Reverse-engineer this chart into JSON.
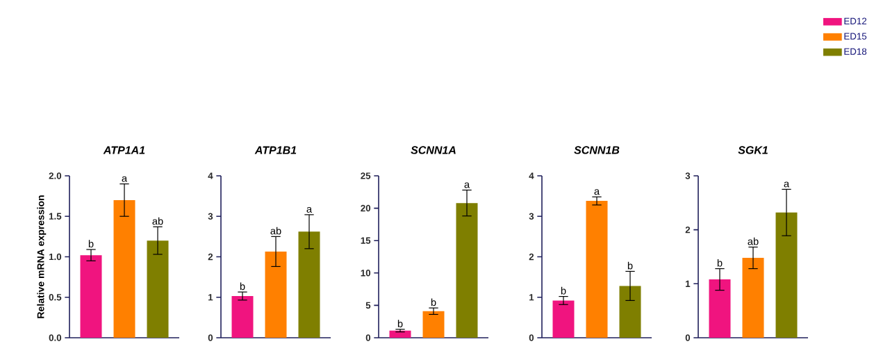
{
  "chart_data": [
    {
      "type": "bar",
      "title": "ATP1A1",
      "ylabel": "Relative mRNA expression",
      "categories": [
        null
      ],
      "ylim": [
        0,
        2
      ],
      "yticks": [
        {
          "value": 0,
          "label": "0.0"
        },
        {
          "value": 0.5,
          "label": "0.5"
        },
        {
          "value": 1,
          "label": "1.0"
        },
        {
          "value": 1.5,
          "label": "1.5"
        },
        {
          "value": 2,
          "label": "2.0"
        }
      ],
      "series": [
        {
          "color": "#f0147f",
          "values": [
            1.02
          ],
          "errors": [
            0.07
          ]
        },
        {
          "color": "#ff8000",
          "values": [
            1.7
          ],
          "errors": [
            0.2
          ]
        },
        {
          "color": "#7f7f00",
          "values": [
            1.2
          ],
          "errors": [
            0.17
          ]
        }
      ],
      "annotations": [
        {
          "text": "b",
          "y": 1.09
        },
        {
          "text": "a",
          "y": 1.9
        },
        {
          "text": "ab",
          "y": 1.37
        }
      ]
    },
    {
      "type": "bar",
      "title": "ATP1B1",
      "categories": [
        null
      ],
      "ylim": [
        0,
        4
      ],
      "yticks": [
        0,
        1,
        2,
        3,
        4
      ],
      "series": [
        {
          "color": "#f0147f",
          "values": [
            1.03
          ],
          "errors": [
            0.1
          ]
        },
        {
          "color": "#ff8000",
          "values": [
            2.13
          ],
          "errors": [
            0.37
          ]
        },
        {
          "color": "#7f7f00",
          "values": [
            2.62
          ],
          "errors": [
            0.42
          ]
        }
      ],
      "annotations": [
        {
          "text": "b",
          "y": 1.13
        },
        {
          "text": "ab",
          "y": 2.5
        },
        {
          "text": "a",
          "y": 3.04
        }
      ]
    },
    {
      "type": "bar",
      "title": "SCNN1A",
      "categories": [
        null
      ],
      "ylim": [
        0,
        25
      ],
      "yticks": [
        0,
        5,
        10,
        15,
        20,
        25
      ],
      "series": [
        {
          "color": "#f0147f",
          "values": [
            1.1
          ],
          "errors": [
            0.2
          ]
        },
        {
          "color": "#ff8000",
          "values": [
            4.1
          ],
          "errors": [
            0.5
          ]
        },
        {
          "color": "#7f7f00",
          "values": [
            20.8
          ],
          "errors": [
            2.0
          ]
        }
      ],
      "annotations": [
        {
          "text": "b",
          "y": 1.3
        },
        {
          "text": "b",
          "y": 4.6
        },
        {
          "text": "a",
          "y": 22.8
        }
      ]
    },
    {
      "type": "bar",
      "title": "SCNN1B",
      "categories": [
        null
      ],
      "ylim": [
        0,
        4
      ],
      "yticks": [
        0,
        1,
        2,
        3,
        4
      ],
      "series": [
        {
          "color": "#f0147f",
          "values": [
            0.92
          ],
          "errors": [
            0.1
          ]
        },
        {
          "color": "#ff8000",
          "values": [
            3.38
          ],
          "errors": [
            0.1
          ]
        },
        {
          "color": "#7f7f00",
          "values": [
            1.28
          ],
          "errors": [
            0.36
          ]
        }
      ],
      "annotations": [
        {
          "text": "b",
          "y": 1.02
        },
        {
          "text": "a",
          "y": 3.48
        },
        {
          "text": "b",
          "y": 1.64
        }
      ]
    },
    {
      "type": "bar",
      "title": "SGK1",
      "categories": [
        null
      ],
      "ylim": [
        0,
        3
      ],
      "yticks": [
        0,
        1,
        2,
        3
      ],
      "legend": "top right",
      "series": [
        {
          "name": "ED12",
          "color": "#f0147f",
          "values": [
            1.08
          ],
          "errors": [
            0.2
          ]
        },
        {
          "name": "ED15",
          "color": "#ff8000",
          "values": [
            1.48
          ],
          "errors": [
            0.2
          ]
        },
        {
          "name": "ED18",
          "color": "#7f7f00",
          "values": [
            2.32
          ],
          "errors": [
            0.43
          ]
        }
      ],
      "annotations": [
        {
          "text": "b",
          "y": 1.28
        },
        {
          "text": "ab",
          "y": 1.68
        },
        {
          "text": "a",
          "y": 2.75
        }
      ]
    }
  ]
}
